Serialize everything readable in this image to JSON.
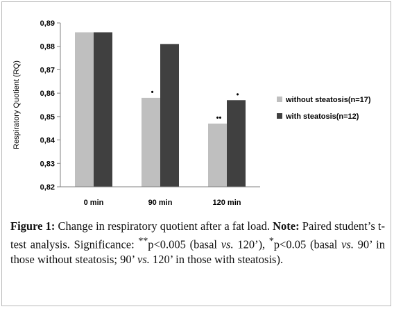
{
  "chart_data": {
    "type": "bar",
    "categories": [
      "0 min",
      "90 min",
      "120 min"
    ],
    "series": [
      {
        "name": "without steatosis(n=17)",
        "color": "#bfbfbf",
        "values": [
          0.886,
          0.858,
          0.847
        ]
      },
      {
        "name": "with steatosis(n=12)",
        "color": "#404040",
        "values": [
          0.886,
          0.881,
          0.857
        ]
      }
    ],
    "ylabel": "Respiratory Quotient (RQ)",
    "ylim": [
      0.82,
      0.89
    ],
    "yticks": [
      0.82,
      0.83,
      0.84,
      0.85,
      0.86,
      0.87,
      0.88,
      0.89
    ],
    "ytick_labels": [
      "0,82",
      "0,83",
      "0,84",
      "0,85",
      "0,86",
      "0,87",
      "0,88",
      "0,89"
    ],
    "grid": false,
    "legend_position": "right",
    "annotations": [
      {
        "category": "90 min",
        "series": 0,
        "text": "•"
      },
      {
        "category": "120 min",
        "series": 0,
        "text": "••"
      },
      {
        "category": "120 min",
        "series": 1,
        "text": "•"
      }
    ]
  },
  "caption": {
    "label": "Figure 1:",
    "title": " Change in respiratory quotient after a fat load. ",
    "note_label": "Note:",
    "p1": " Paired student’s t-test analysis. Significance: ",
    "sup_double": "**",
    "p2": "p<0.005 (basal ",
    "vs1": "vs.",
    "p3": " 120’), ",
    "sup_single": "*",
    "p4": "p<0.05 (basal ",
    "vs2": "vs.",
    "p5": " 90’ in those without steatosis; 90’ ",
    "vs3": "vs.",
    "p6": " 120’ in those with steatosis)."
  }
}
